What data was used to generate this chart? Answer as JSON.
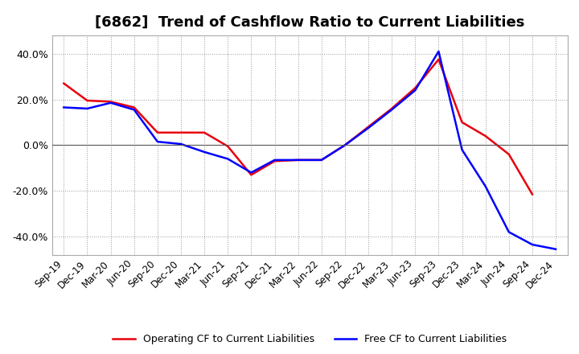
{
  "title": "[6862]  Trend of Cashflow Ratio to Current Liabilities",
  "x_labels": [
    "Sep-19",
    "Dec-19",
    "Mar-20",
    "Jun-20",
    "Sep-20",
    "Dec-20",
    "Mar-21",
    "Jun-21",
    "Sep-21",
    "Dec-21",
    "Mar-22",
    "Jun-22",
    "Sep-22",
    "Dec-22",
    "Mar-23",
    "Jun-23",
    "Sep-23",
    "Dec-23",
    "Mar-24",
    "Jun-24",
    "Sep-24",
    "Dec-24"
  ],
  "operating_cf": [
    0.27,
    0.195,
    0.19,
    0.165,
    0.055,
    0.055,
    0.055,
    -0.005,
    -0.13,
    -0.07,
    -0.065,
    -0.065,
    0.0,
    0.08,
    0.16,
    0.25,
    0.375,
    0.1,
    0.04,
    -0.04,
    -0.215,
    null
  ],
  "free_cf": [
    0.165,
    0.16,
    0.185,
    0.155,
    0.015,
    0.005,
    -0.03,
    -0.06,
    -0.12,
    -0.065,
    -0.065,
    -0.065,
    0.0,
    0.075,
    0.155,
    0.24,
    0.41,
    -0.02,
    -0.18,
    -0.38,
    -0.435,
    -0.455
  ],
  "op_color": "#e8000d",
  "free_color": "#0000ff",
  "bg_color": "#ffffff",
  "plot_bg_color": "#ffffff",
  "grid_color": "#999999",
  "ylim": [
    -0.48,
    0.48
  ],
  "yticks": [
    -0.4,
    -0.2,
    0.0,
    0.2,
    0.4
  ],
  "legend_op": "Operating CF to Current Liabilities",
  "legend_free": "Free CF to Current Liabilities",
  "title_fontsize": 13,
  "tick_fontsize": 8.5,
  "legend_fontsize": 9
}
